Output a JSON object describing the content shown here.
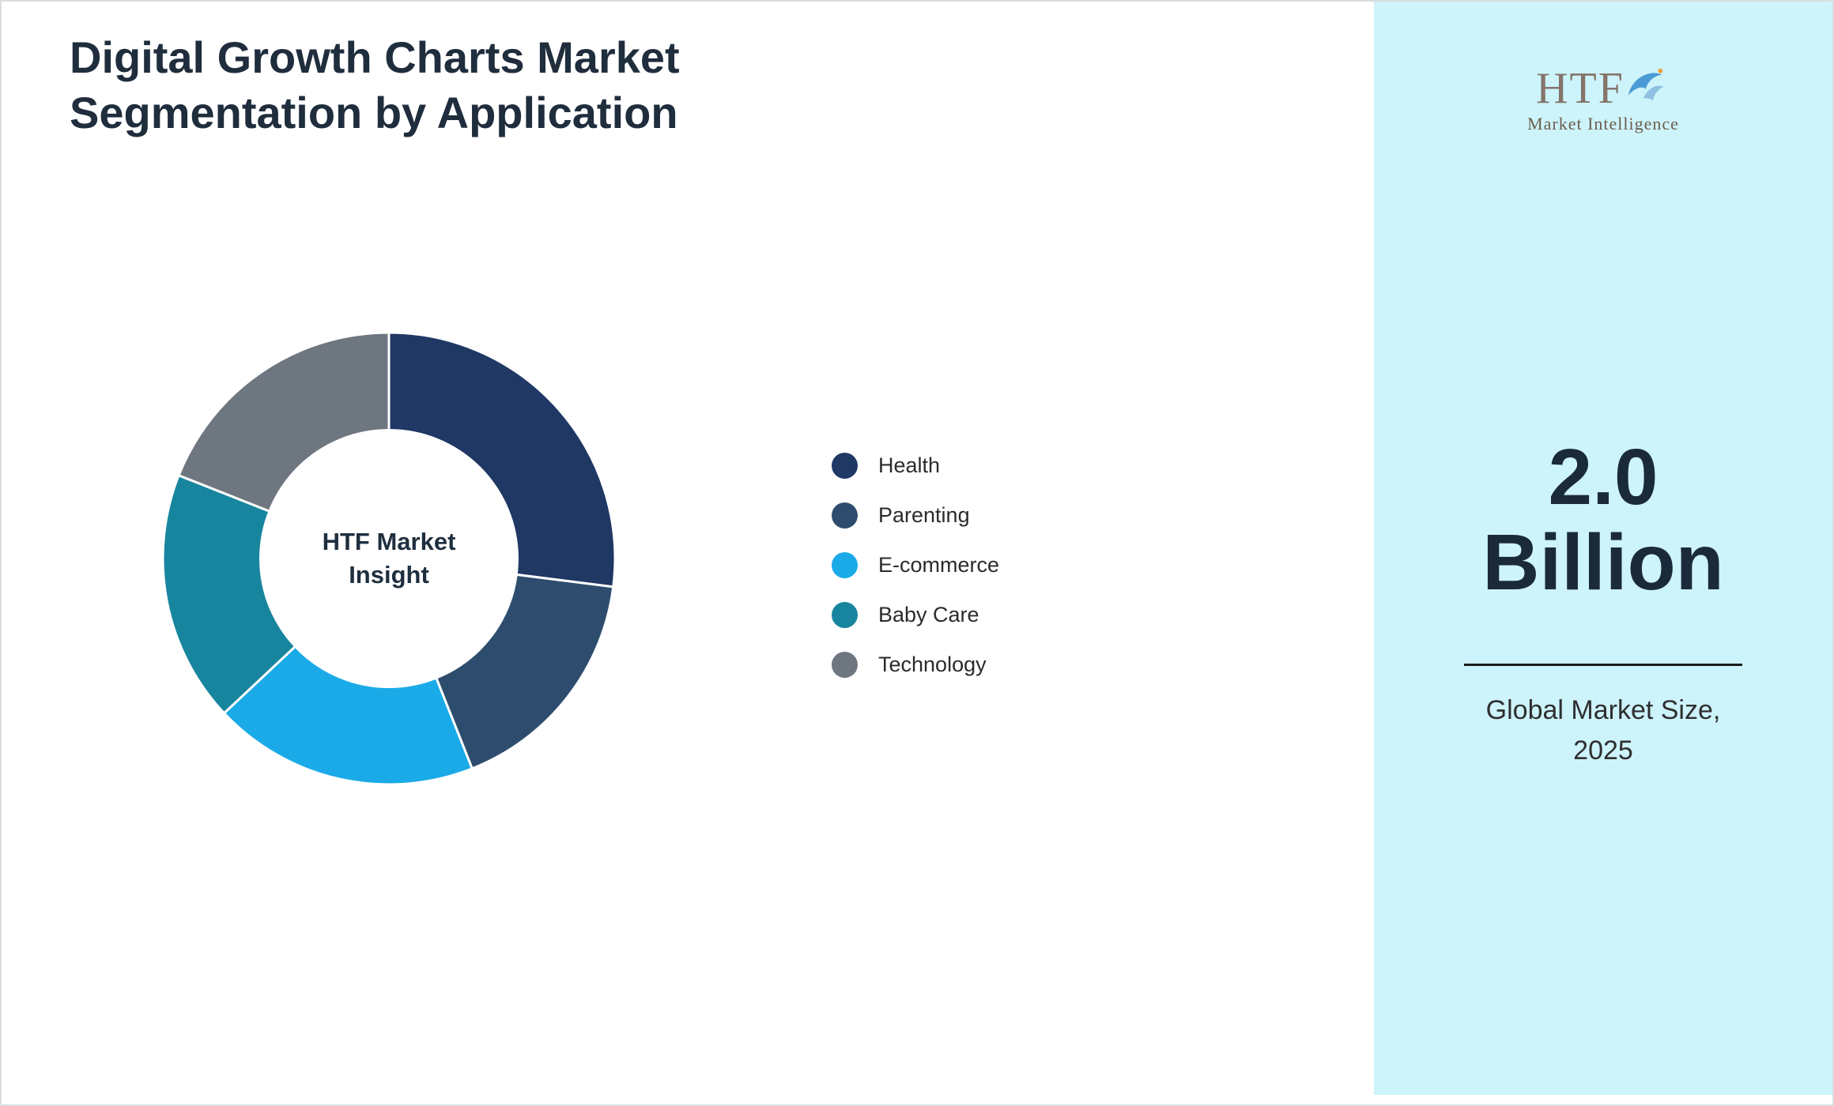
{
  "title": "Digital Growth Charts Market Segmentation by Application",
  "logo": {
    "name": "HTF",
    "subtitle": "Market Intelligence",
    "text_color": "#84746a",
    "dolphin_color": "#4a9bd5"
  },
  "right_panel": {
    "background": "#cdf3fb",
    "value_line1": "2.0",
    "value_line2": "Billion",
    "caption_line1": "Global Market Size,",
    "caption_line2": "2025"
  },
  "chart_data": {
    "type": "pie",
    "donut": true,
    "title": "Digital Growth Charts Market Segmentation by Application",
    "center_label": "HTF Market Insight",
    "legend_position": "right",
    "categories": [
      "Health",
      "Parenting",
      "E-commerce",
      "Baby Care",
      "Technology"
    ],
    "values": [
      27,
      17,
      19,
      18,
      19
    ],
    "unit": "percent",
    "colors": [
      "#1f3864",
      "#2e4d6e",
      "#1aaae8",
      "#18859f",
      "#6e7680"
    ],
    "start_angle_deg": 0,
    "direction": "clockwise"
  }
}
